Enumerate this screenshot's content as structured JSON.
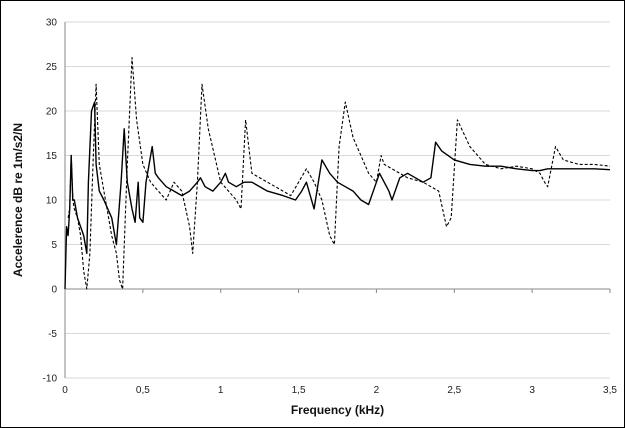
{
  "chart_data": {
    "type": "line",
    "title": "",
    "xlabel": "Frequency (kHz)",
    "ylabel": "Accelerence dB re 1m/s2/N",
    "xlim": [
      0,
      3.5
    ],
    "ylim": [
      -10,
      30
    ],
    "x_ticks": [
      0,
      0.5,
      1,
      1.5,
      2,
      2.5,
      3,
      3.5
    ],
    "x_tick_labels": [
      "0",
      "0,5",
      "1",
      "1,5",
      "2",
      "2,5",
      "3",
      "3,5"
    ],
    "y_ticks": [
      -10,
      -5,
      0,
      5,
      10,
      15,
      20,
      25,
      30
    ],
    "y_tick_labels": [
      "-10",
      "-5",
      "0",
      "5",
      "10",
      "15",
      "20",
      "25",
      "30"
    ],
    "grid": "horizontal",
    "legend": "none",
    "series": [
      {
        "style": "solid",
        "color": "#000000",
        "x": [
          0,
          0.01,
          0.02,
          0.03,
          0.04,
          0.05,
          0.06,
          0.08,
          0.1,
          0.12,
          0.14,
          0.15,
          0.17,
          0.19,
          0.2,
          0.22,
          0.25,
          0.3,
          0.33,
          0.36,
          0.38,
          0.4,
          0.43,
          0.45,
          0.47,
          0.48,
          0.5,
          0.52,
          0.54,
          0.56,
          0.58,
          0.6,
          0.65,
          0.7,
          0.75,
          0.8,
          0.85,
          0.87,
          0.9,
          0.95,
          1.0,
          1.03,
          1.05,
          1.1,
          1.15,
          1.2,
          1.3,
          1.4,
          1.48,
          1.52,
          1.55,
          1.6,
          1.65,
          1.7,
          1.75,
          1.8,
          1.85,
          1.9,
          1.95,
          2.0,
          2.02,
          2.05,
          2.08,
          2.1,
          2.15,
          2.2,
          2.25,
          2.3,
          2.35,
          2.38,
          2.42,
          2.5,
          2.6,
          2.7,
          2.8,
          2.9,
          3.0,
          3.05,
          3.1,
          3.2,
          3.3,
          3.4,
          3.5
        ],
        "y": [
          0,
          7,
          6,
          9,
          15,
          10,
          10,
          8,
          7,
          6,
          4,
          12,
          20,
          21,
          14,
          11,
          10,
          8,
          5,
          12,
          18,
          12,
          9,
          7.5,
          12,
          8,
          7.5,
          12,
          14,
          16,
          13,
          12.5,
          11.5,
          11,
          10.5,
          11,
          12,
          12.5,
          11.5,
          11,
          12,
          13,
          12,
          11.5,
          12,
          12,
          11,
          10.5,
          10,
          11,
          12,
          9,
          14.5,
          13,
          12,
          11.5,
          11,
          10,
          9.5,
          12,
          13,
          12,
          11,
          10,
          12.5,
          13,
          12.5,
          12,
          12.5,
          16.5,
          15.5,
          14.5,
          14,
          13.8,
          13.8,
          13.5,
          13.3,
          13.3,
          13.5,
          13.5,
          13.5,
          13.5,
          13.4
        ]
      },
      {
        "style": "dashed",
        "color": "#000000",
        "x": [
          0.02,
          0.03,
          0.04,
          0.05,
          0.06,
          0.08,
          0.1,
          0.12,
          0.14,
          0.16,
          0.18,
          0.2,
          0.22,
          0.25,
          0.28,
          0.3,
          0.33,
          0.35,
          0.37,
          0.4,
          0.43,
          0.46,
          0.5,
          0.55,
          0.6,
          0.65,
          0.7,
          0.75,
          0.8,
          0.82,
          0.85,
          0.88,
          0.92,
          0.96,
          1.0,
          1.05,
          1.1,
          1.13,
          1.16,
          1.2,
          1.3,
          1.4,
          1.45,
          1.5,
          1.55,
          1.6,
          1.65,
          1.7,
          1.73,
          1.76,
          1.8,
          1.85,
          1.9,
          1.95,
          2.0,
          2.03,
          2.05,
          2.1,
          2.2,
          2.3,
          2.4,
          2.45,
          2.48,
          2.52,
          2.6,
          2.7,
          2.8,
          2.9,
          3.0,
          3.05,
          3.08,
          3.1,
          3.15,
          3.2,
          3.3,
          3.4,
          3.5
        ],
        "y": [
          8,
          9,
          15,
          10,
          9,
          8,
          6,
          2,
          0,
          4,
          14,
          23,
          14,
          11,
          8,
          6,
          4,
          1,
          0,
          14,
          26,
          19,
          14,
          12,
          11,
          10,
          12,
          11,
          7,
          4,
          12,
          23,
          18,
          15,
          12,
          11,
          10,
          9,
          19,
          13,
          12,
          11,
          10.5,
          12,
          13.5,
          12,
          10,
          6,
          5,
          16,
          21,
          17,
          15,
          13,
          12,
          15,
          14,
          13.5,
          12.5,
          12,
          11,
          7,
          8,
          19,
          16,
          14,
          13.5,
          13.8,
          13.5,
          13,
          12,
          11.5,
          16,
          14.5,
          14,
          14,
          13.8
        ]
      }
    ]
  }
}
